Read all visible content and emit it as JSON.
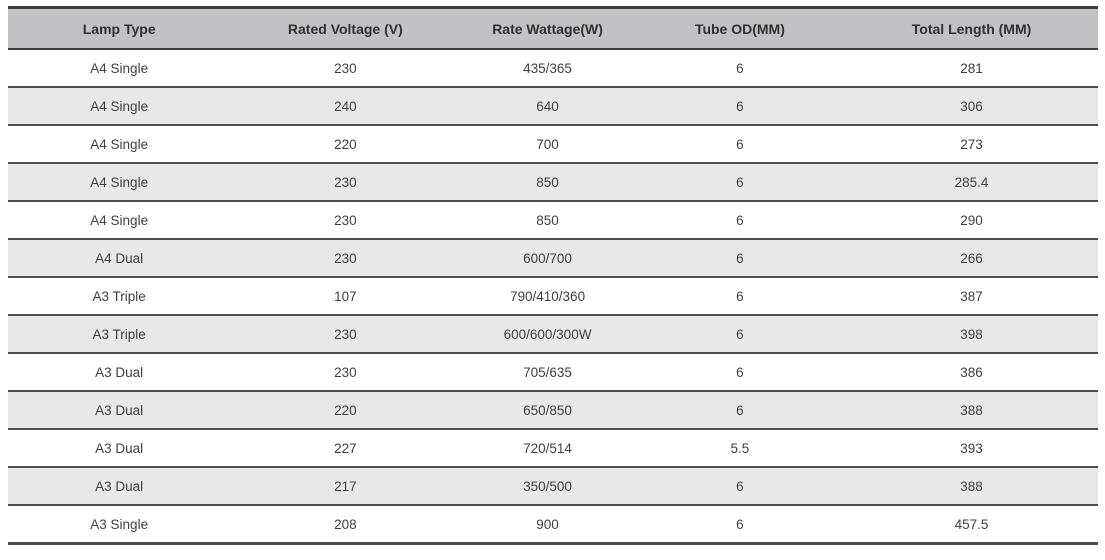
{
  "table": {
    "name": "lamp-specifications",
    "columns": [
      "Lamp Type",
      "Rated Voltage (V)",
      "Rate Wattage(W)",
      "Tube OD(MM)",
      "Total Length (MM)"
    ],
    "rows": [
      [
        "A4 Single",
        "230",
        "435/365",
        "6",
        "281"
      ],
      [
        "A4 Single",
        "240",
        "640",
        "6",
        "306"
      ],
      [
        "A4 Single",
        "220",
        "700",
        "6",
        "273"
      ],
      [
        "A4 Single",
        "230",
        "850",
        "6",
        "285.4"
      ],
      [
        "A4 Single",
        "230",
        "850",
        "6",
        "290"
      ],
      [
        "A4 Dual",
        "230",
        "600/700",
        "6",
        "266"
      ],
      [
        "A3 Triple",
        "107",
        "790/410/360",
        "6",
        "387"
      ],
      [
        "A3 Triple",
        "230",
        "600/600/300W",
        "6",
        "398"
      ],
      [
        "A3 Dual",
        "230",
        "705/635",
        "6",
        "386"
      ],
      [
        "A3 Dual",
        "220",
        "650/850",
        "6",
        "388"
      ],
      [
        "A3 Dual",
        "227",
        "720/514",
        "5.5",
        "393"
      ],
      [
        "A3 Dual",
        "217",
        "350/500",
        "6",
        "388"
      ],
      [
        "A3 Single",
        "208",
        "900",
        "6",
        "457.5"
      ]
    ],
    "colors": {
      "header_bg": "#c2c2c4",
      "alt_row_bg": "#e8e8e8",
      "row_border": "#4d4d4d",
      "outer_border": "#3e3e3e",
      "text": "#3f3f3f"
    }
  }
}
